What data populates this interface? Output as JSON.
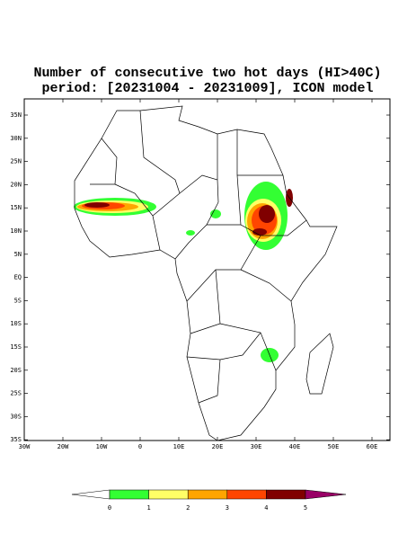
{
  "title": {
    "line1": "Number of consecutive two hot days (HI>40C)",
    "line2": "period: [20231004 - 20231009], ICON model"
  },
  "map": {
    "lat_labels": [
      "35N",
      "30N",
      "25N",
      "20N",
      "15N",
      "10N",
      "5N",
      "EQ",
      "5S",
      "10S",
      "15S",
      "20S",
      "25S",
      "30S",
      "35S"
    ],
    "lon_labels": [
      "30W",
      "20W",
      "10W",
      "0",
      "10E",
      "20E",
      "30E",
      "40E",
      "50E",
      "60E"
    ]
  },
  "colorbar": {
    "labels": [
      0,
      1,
      2,
      3,
      4,
      5
    ]
  }
}
